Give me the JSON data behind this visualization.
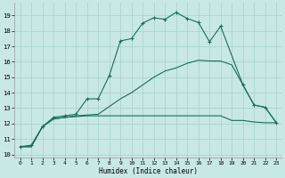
{
  "xlabel": "Humidex (Indice chaleur)",
  "bg_color": "#c8e8e5",
  "grid_color": "#aad4d0",
  "line_color": "#1a6b5e",
  "xlim": [
    -0.5,
    23.5
  ],
  "ylim": [
    9.8,
    19.8
  ],
  "yticks": [
    10,
    11,
    12,
    13,
    14,
    15,
    16,
    17,
    18,
    19
  ],
  "xticks": [
    0,
    1,
    2,
    3,
    4,
    5,
    6,
    7,
    8,
    9,
    10,
    11,
    12,
    13,
    14,
    15,
    16,
    17,
    18,
    19,
    20,
    21,
    22,
    23
  ],
  "line1_x": [
    0,
    1,
    2,
    3,
    4,
    5,
    6,
    7,
    8,
    9,
    10,
    11,
    12,
    13,
    14,
    15,
    16,
    17,
    18,
    20,
    21,
    22,
    23
  ],
  "line1_y": [
    10.5,
    10.6,
    11.8,
    12.4,
    12.5,
    12.6,
    13.6,
    13.6,
    15.1,
    17.35,
    17.5,
    18.5,
    18.85,
    18.75,
    19.2,
    18.8,
    18.55,
    17.3,
    18.3,
    14.5,
    13.2,
    13.05,
    12.05
  ],
  "line2_x": [
    0,
    1,
    2,
    3,
    4,
    5,
    6,
    7,
    8,
    9,
    10,
    11,
    12,
    13,
    14,
    15,
    16,
    17,
    18,
    19,
    20,
    21,
    22,
    23
  ],
  "line2_y": [
    10.5,
    10.5,
    11.8,
    12.3,
    12.4,
    12.45,
    12.5,
    12.5,
    12.5,
    12.5,
    12.5,
    12.5,
    12.5,
    12.5,
    12.5,
    12.5,
    12.5,
    12.5,
    12.5,
    12.2,
    12.2,
    12.1,
    12.05,
    12.05
  ],
  "line3_x": [
    0,
    1,
    2,
    3,
    4,
    5,
    6,
    7,
    8,
    9,
    10,
    11,
    12,
    13,
    14,
    15,
    16,
    17,
    18,
    19,
    20,
    21,
    22,
    23
  ],
  "line3_y": [
    10.5,
    10.5,
    11.8,
    12.3,
    12.4,
    12.5,
    12.55,
    12.6,
    13.1,
    13.6,
    14.0,
    14.5,
    15.0,
    15.4,
    15.6,
    15.9,
    16.1,
    16.05,
    16.05,
    15.8,
    14.5,
    13.2,
    13.05,
    12.05
  ]
}
